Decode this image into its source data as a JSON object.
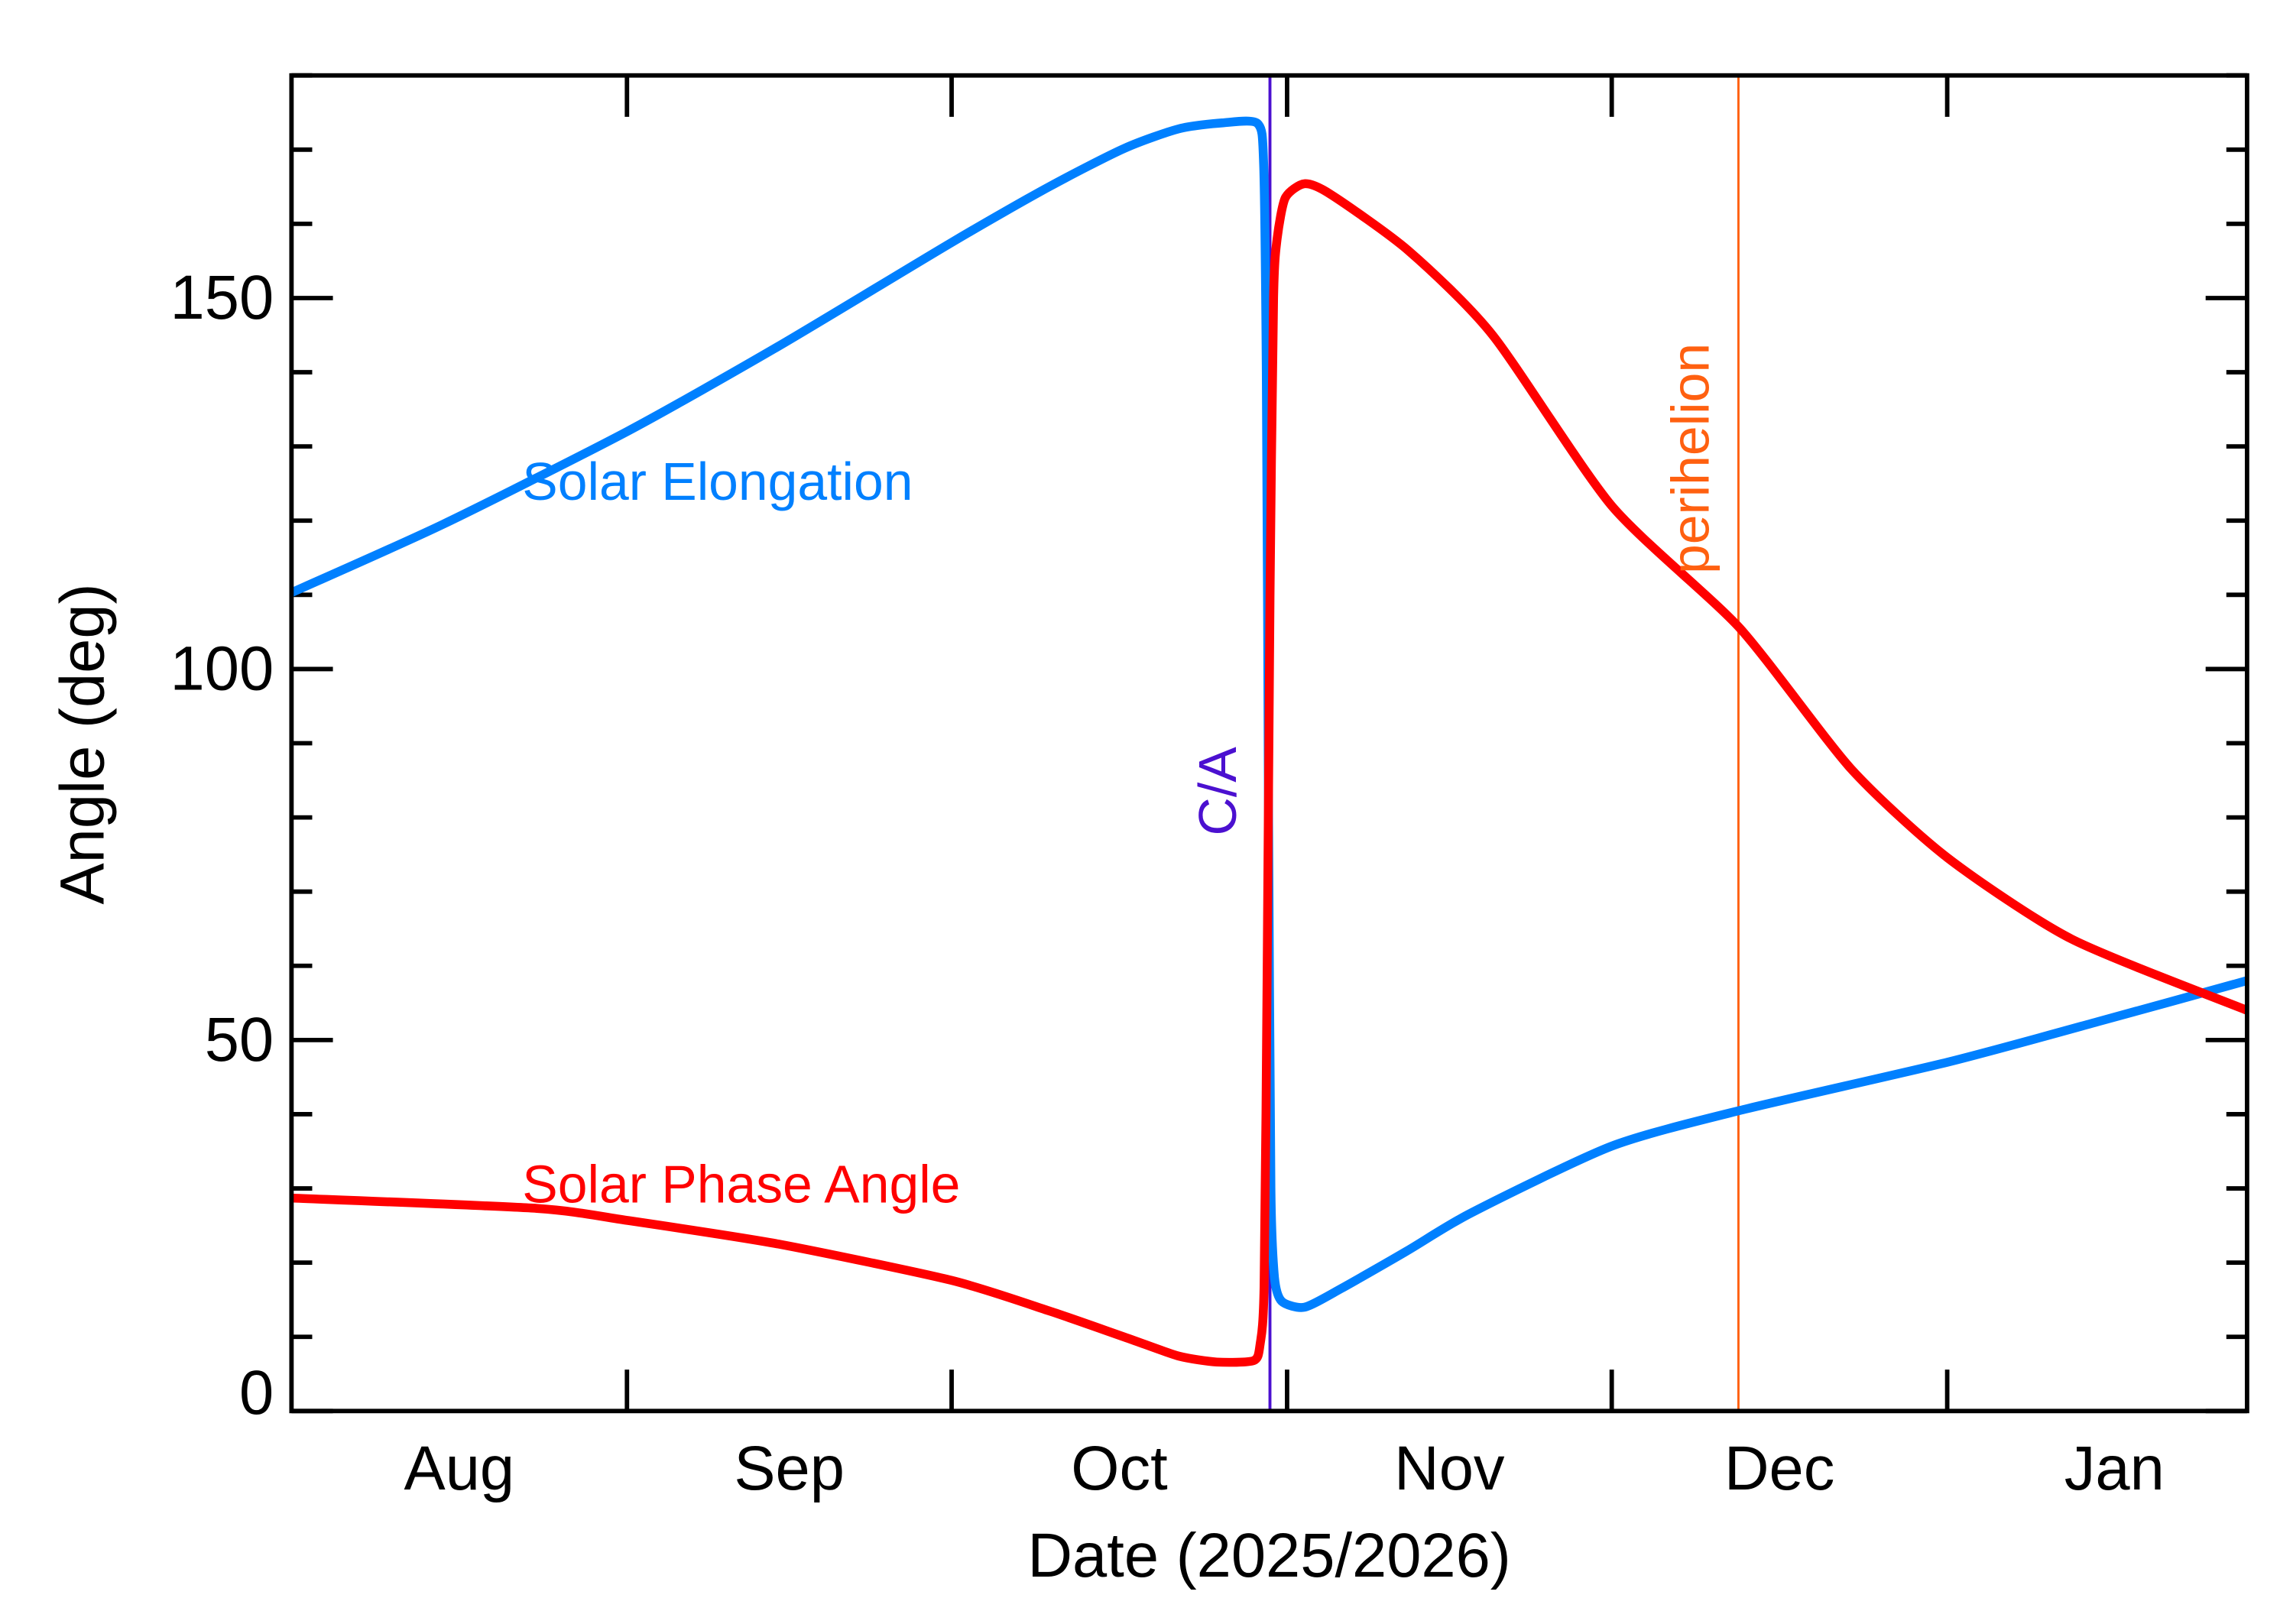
{
  "chart_data": {
    "type": "line",
    "title": "",
    "xlabel": "Date (2025/2026)",
    "ylabel": "Angle (deg)",
    "xlim": [
      "2025-08-01T00:00",
      "2026-01-28T17:00"
    ],
    "ylim": [
      0,
      180
    ],
    "grid": false,
    "x_tick_labels": [
      "Aug",
      "Sep",
      "Oct",
      "Nov",
      "Dec",
      "Jan"
    ],
    "x_month_starts": [
      "2025-08-01",
      "2025-09-01",
      "2025-10-01",
      "2025-11-01",
      "2025-12-01",
      "2026-01-01"
    ],
    "y_major_ticks": [
      0,
      50,
      100,
      150
    ],
    "y_tick_labels": [
      "0",
      "50",
      "100",
      "150"
    ],
    "y_minor_step": 10,
    "series": [
      {
        "name": "Solar Elongation",
        "color": "#0080FF",
        "points": [
          [
            "2025-08-01T00:00",
            110.3
          ],
          [
            "2025-08-15T00:00",
            119.5
          ],
          [
            "2025-09-01T00:00",
            132.0
          ],
          [
            "2025-09-15T00:00",
            143.5
          ],
          [
            "2025-10-01T00:00",
            157.5
          ],
          [
            "2025-10-10T00:00",
            165.0
          ],
          [
            "2025-10-17T00:00",
            170.2
          ],
          [
            "2025-10-22T00:00",
            172.8
          ],
          [
            "2025-10-26T00:00",
            173.6
          ],
          [
            "2025-10-29T07:00",
            173.5
          ],
          [
            "2025-10-29T20:00",
            168.0
          ],
          [
            "2025-10-30T02:00",
            140.0
          ],
          [
            "2025-10-30T07:00",
            80.0
          ],
          [
            "2025-10-30T12:00",
            30.0
          ],
          [
            "2025-10-30T20:00",
            18.0
          ],
          [
            "2025-10-31T12:00",
            14.8
          ],
          [
            "2025-11-02T15:00",
            14.0
          ],
          [
            "2025-11-06T00:00",
            16.5
          ],
          [
            "2025-11-12T00:00",
            21.5
          ],
          [
            "2025-11-18T00:00",
            26.7
          ],
          [
            "2025-12-01T00:00",
            35.7
          ],
          [
            "2025-12-12T20:00",
            40.5
          ],
          [
            "2026-01-01T00:00",
            47.0
          ],
          [
            "2026-01-15T00:00",
            52.5
          ],
          [
            "2026-01-28T17:00",
            58.0
          ]
        ]
      },
      {
        "name": "Solar Phase Angle",
        "color": "#FF0000",
        "points": [
          [
            "2025-08-01T00:00",
            28.7
          ],
          [
            "2025-08-23T16:00",
            27.3
          ],
          [
            "2025-09-01T00:00",
            25.7
          ],
          [
            "2025-09-15T00:00",
            22.5
          ],
          [
            "2025-10-01T00:00",
            17.6
          ],
          [
            "2025-10-10T00:00",
            13.5
          ],
          [
            "2025-10-17T07:00",
            9.8
          ],
          [
            "2025-10-22T00:00",
            7.4
          ],
          [
            "2025-10-25T12:00",
            6.6
          ],
          [
            "2025-10-28T22:00",
            6.8
          ],
          [
            "2025-10-29T12:00",
            9.0
          ],
          [
            "2025-10-29T21:00",
            16.8
          ],
          [
            "2025-10-30T04:00",
            60.0
          ],
          [
            "2025-10-30T10:00",
            110.0
          ],
          [
            "2025-10-30T18:00",
            150.0
          ],
          [
            "2025-10-31T02:00",
            158.0
          ],
          [
            "2025-10-31T20:00",
            163.5
          ],
          [
            "2025-11-02T15:00",
            165.4
          ],
          [
            "2025-11-05T00:00",
            164.0
          ],
          [
            "2025-11-12T05:00",
            156.4
          ],
          [
            "2025-11-20T00:00",
            145.0
          ],
          [
            "2025-12-01T00:00",
            122.0
          ],
          [
            "2025-12-12T20:00",
            105.5
          ],
          [
            "2025-12-23T02:00",
            86.6
          ],
          [
            "2026-01-01T00:00",
            74.6
          ],
          [
            "2026-01-12T12:00",
            63.6
          ],
          [
            "2026-01-28T17:00",
            54.0
          ]
        ]
      }
    ],
    "vertical_markers": [
      {
        "label": "C/A",
        "date": "2025-10-30T10:00",
        "color": "#4B10D0"
      },
      {
        "label": "perihelion",
        "date": "2025-12-12T17:00",
        "color": "#FF6010"
      }
    ]
  }
}
